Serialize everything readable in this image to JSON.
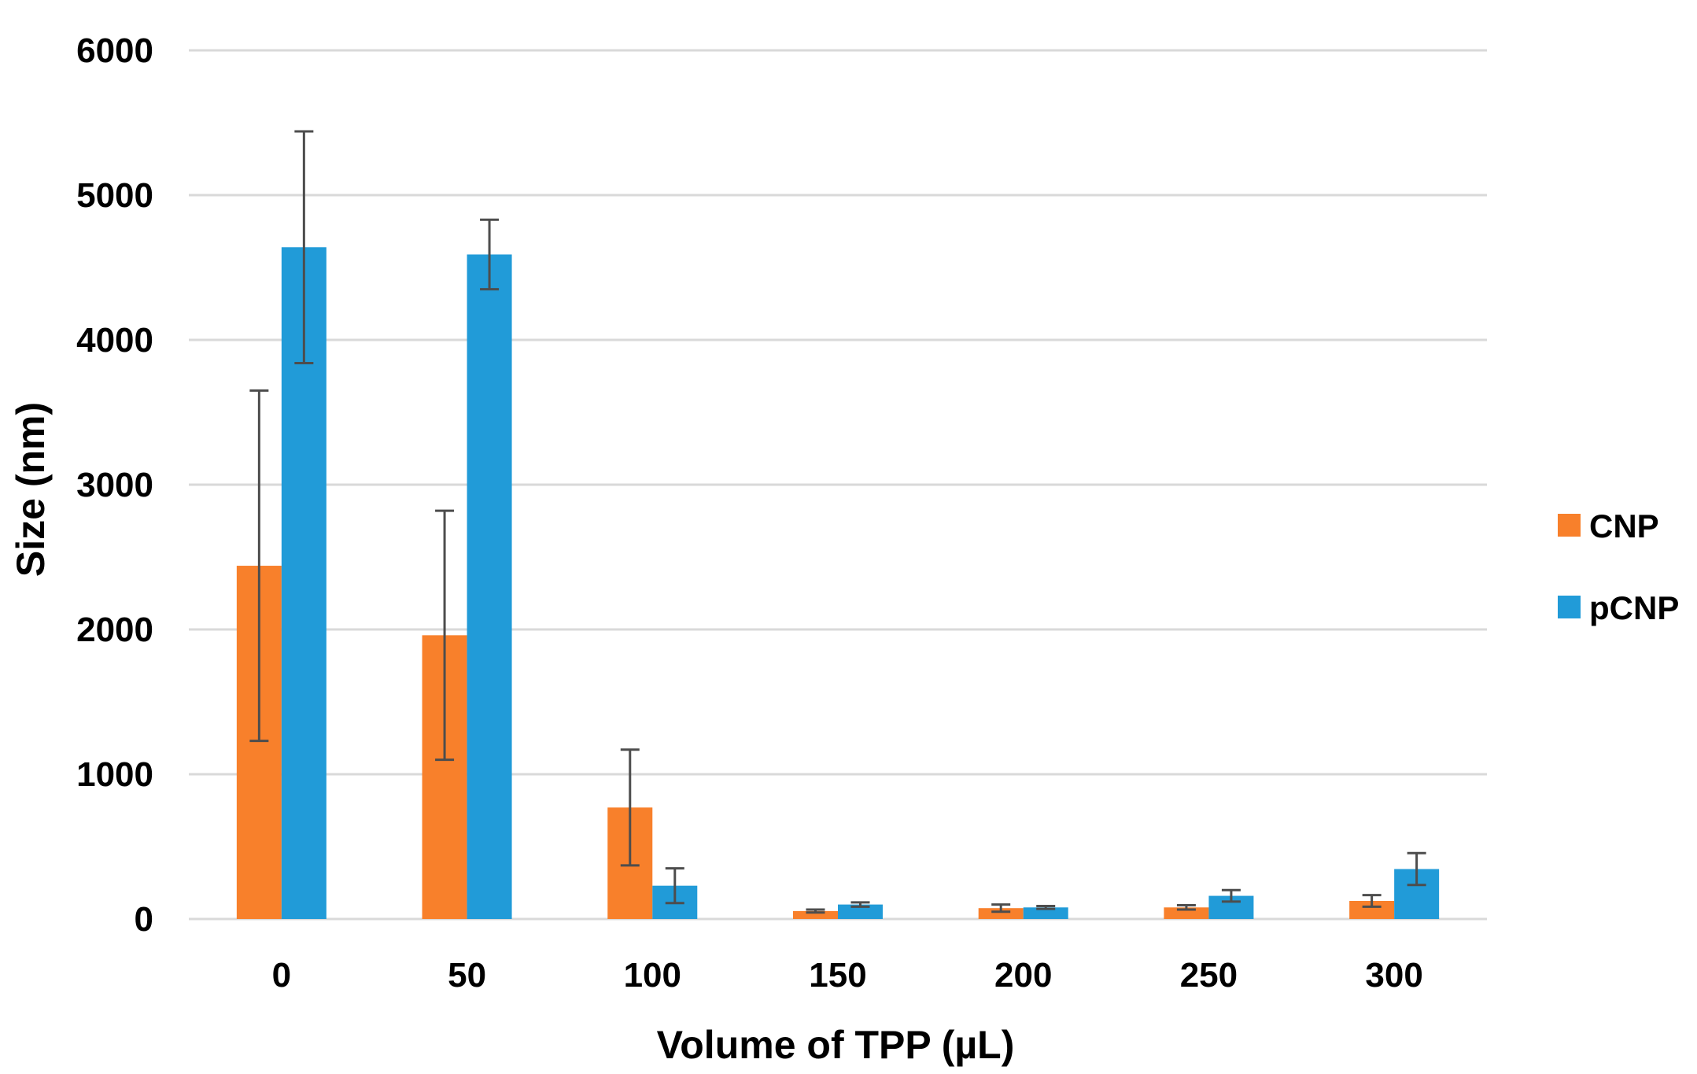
{
  "chart_data": {
    "type": "bar",
    "title": "",
    "xlabel": "Volume of TPP (µL)",
    "ylabel": "Size (nm)",
    "ylim": [
      0,
      6000
    ],
    "yticks": [
      0,
      1000,
      2000,
      3000,
      4000,
      5000,
      6000
    ],
    "grid": true,
    "legend_position": "right",
    "categories": [
      "0",
      "50",
      "100",
      "150",
      "200",
      "250",
      "300"
    ],
    "series": [
      {
        "name": "CNP",
        "color": "#f8802b",
        "values": [
          2440,
          1960,
          770,
          55,
          75,
          80,
          125
        ],
        "errors": [
          1210,
          860,
          400,
          10,
          25,
          15,
          40
        ]
      },
      {
        "name": "pCNP",
        "color": "#219bd8",
        "values": [
          4640,
          4590,
          230,
          100,
          80,
          160,
          345
        ],
        "errors": [
          800,
          240,
          120,
          15,
          10,
          40,
          110
        ]
      }
    ]
  }
}
